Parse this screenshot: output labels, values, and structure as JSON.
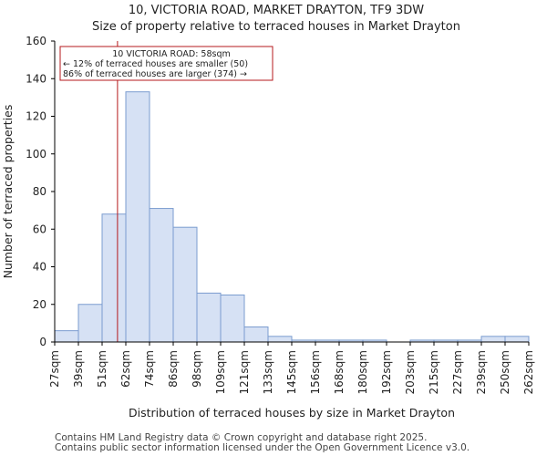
{
  "chart_data": {
    "type": "bar",
    "title": "10, VICTORIA ROAD, MARKET DRAYTON, TF9 3DW",
    "subtitle": "Size of property relative to terraced houses in Market Drayton",
    "xlabel": "Distribution of terraced houses by size in Market Drayton",
    "ylabel": "Number of terraced properties",
    "ylim": [
      0,
      160
    ],
    "yticks": [
      0,
      20,
      40,
      60,
      80,
      100,
      120,
      140,
      160
    ],
    "bin_edges": [
      "27sqm",
      "39sqm",
      "51sqm",
      "62sqm",
      "74sqm",
      "86sqm",
      "98sqm",
      "109sqm",
      "121sqm",
      "133sqm",
      "145sqm",
      "156sqm",
      "168sqm",
      "180sqm",
      "192sqm",
      "203sqm",
      "215sqm",
      "227sqm",
      "239sqm",
      "250sqm",
      "262sqm"
    ],
    "values": [
      6,
      20,
      68,
      133,
      71,
      61,
      26,
      25,
      8,
      3,
      1,
      1,
      1,
      1,
      0,
      1,
      1,
      1,
      3,
      3
    ],
    "marker_value": 58,
    "marker_bin_position": 2.65,
    "annotation": {
      "line1": "10 VICTORIA ROAD: 58sqm",
      "line2": "← 12% of terraced houses are smaller (50)",
      "line3": "86% of terraced houses are larger (374) →"
    },
    "colors": {
      "bar_fill": "#d6e1f4",
      "bar_edge": "#7b9ccf",
      "marker": "#b5181c",
      "axis": "#000000"
    }
  },
  "footer": {
    "line1": "Contains HM Land Registry data © Crown copyright and database right 2025.",
    "line2": "Contains public sector information licensed under the Open Government Licence v3.0."
  }
}
